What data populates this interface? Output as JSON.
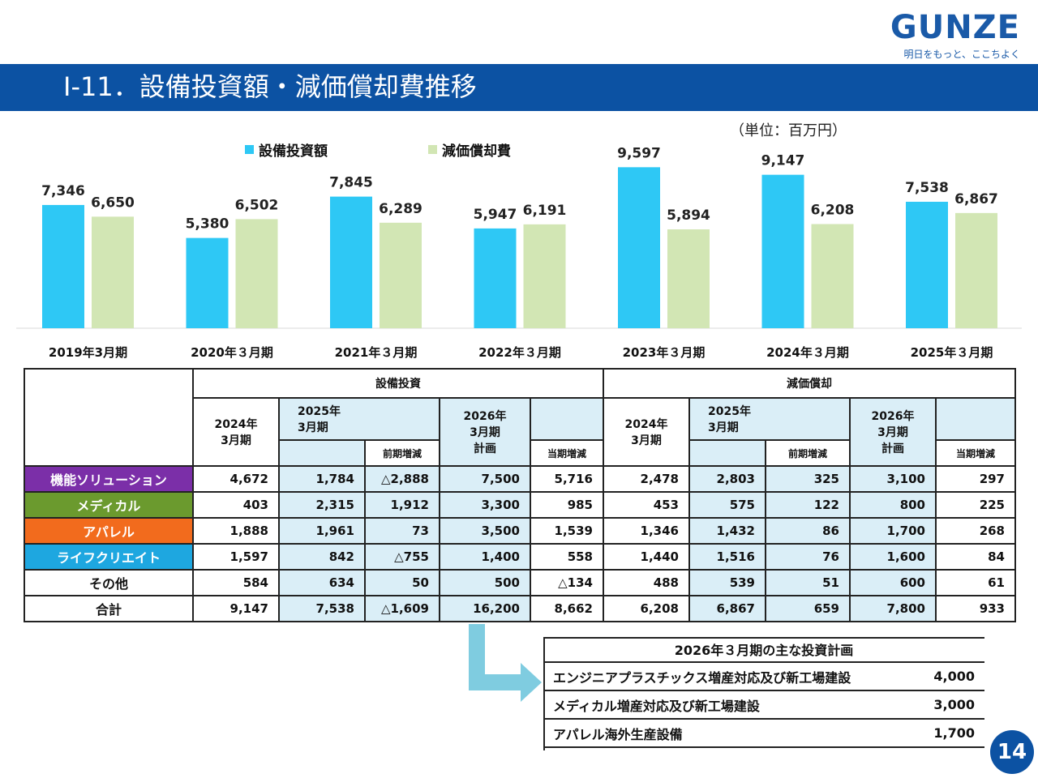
{
  "logo": {
    "text": "GUNZE",
    "tagline": "明日をもっと、ここちよく"
  },
  "title": "Ⅰ-11．設備投資額・減価償却費推移",
  "unit": "（単位：百万円）",
  "colors": {
    "capex": "#2ec8f5",
    "depreciation": "#d2e6b4",
    "header_bar": "#0c52a3",
    "shade": "#daeef7",
    "arrow": "#7fcce0",
    "seg_functional": "#7b2fa8",
    "seg_medical": "#6b9a2e",
    "seg_apparel": "#f26b1d",
    "seg_lifecreate": "#1ea7e0"
  },
  "chart_data": {
    "type": "bar",
    "categories": [
      "2019年3月期",
      "2020年３月期",
      "2021年３月期",
      "2022年３月期",
      "2023年３月期",
      "2024年３月期",
      "2025年３月期"
    ],
    "series": [
      {
        "name": "設備投資額",
        "values": [
          7346,
          5380,
          7845,
          5947,
          9597,
          9147,
          7538
        ],
        "labels": [
          "7,346",
          "5,380",
          "7,845",
          "5,947",
          "9,597",
          "9,147",
          "7,538"
        ]
      },
      {
        "name": "減価償却費",
        "values": [
          6650,
          6502,
          6289,
          6191,
          5894,
          6208,
          6867
        ],
        "labels": [
          "6,650",
          "6,502",
          "6,289",
          "6,191",
          "5,894",
          "6,208",
          "6,867"
        ]
      }
    ],
    "ylim": [
      0,
      10000
    ],
    "legend": "top",
    "grid": false
  },
  "table": {
    "group_capex": "設備投資",
    "group_dep": "減価償却",
    "col_2024": "2024年\n3月期",
    "col_2025": "2025年\n3月期",
    "col_2026": "2026年\n3月期\n計画",
    "sub_prev": "前期増減",
    "sub_curr": "当期増減",
    "rows": [
      {
        "name": "機能ソリューション",
        "vals": [
          "4,672",
          "1,784",
          "△2,888",
          "7,500",
          "5,716",
          "2,478",
          "2,803",
          "325",
          "3,100",
          "297"
        ]
      },
      {
        "name": "メディカル",
        "vals": [
          "403",
          "2,315",
          "1,912",
          "3,300",
          "985",
          "453",
          "575",
          "122",
          "800",
          "225"
        ]
      },
      {
        "name": "アパレル",
        "vals": [
          "1,888",
          "1,961",
          "73",
          "3,500",
          "1,539",
          "1,346",
          "1,432",
          "86",
          "1,700",
          "268"
        ]
      },
      {
        "name": "ライフクリエイト",
        "vals": [
          "1,597",
          "842",
          "△755",
          "1,400",
          "558",
          "1,440",
          "1,516",
          "76",
          "1,600",
          "84"
        ]
      },
      {
        "name": "その他",
        "vals": [
          "584",
          "634",
          "50",
          "500",
          "△134",
          "488",
          "539",
          "51",
          "600",
          "61"
        ]
      },
      {
        "name": "合計",
        "vals": [
          "9,147",
          "7,538",
          "△1,609",
          "16,200",
          "8,662",
          "6,208",
          "6,867",
          "659",
          "7,800",
          "933"
        ]
      }
    ]
  },
  "plan": {
    "title": "2026年３月期の主な投資計画",
    "items": [
      {
        "label": "エンジニアプラスチックス増産対応及び新工場建設",
        "value": "4,000"
      },
      {
        "label": "メディカル増産対応及び新工場建設",
        "value": "3,000"
      },
      {
        "label": "アパレル海外生産設備",
        "value": "1,700"
      }
    ]
  },
  "page_number": "14"
}
